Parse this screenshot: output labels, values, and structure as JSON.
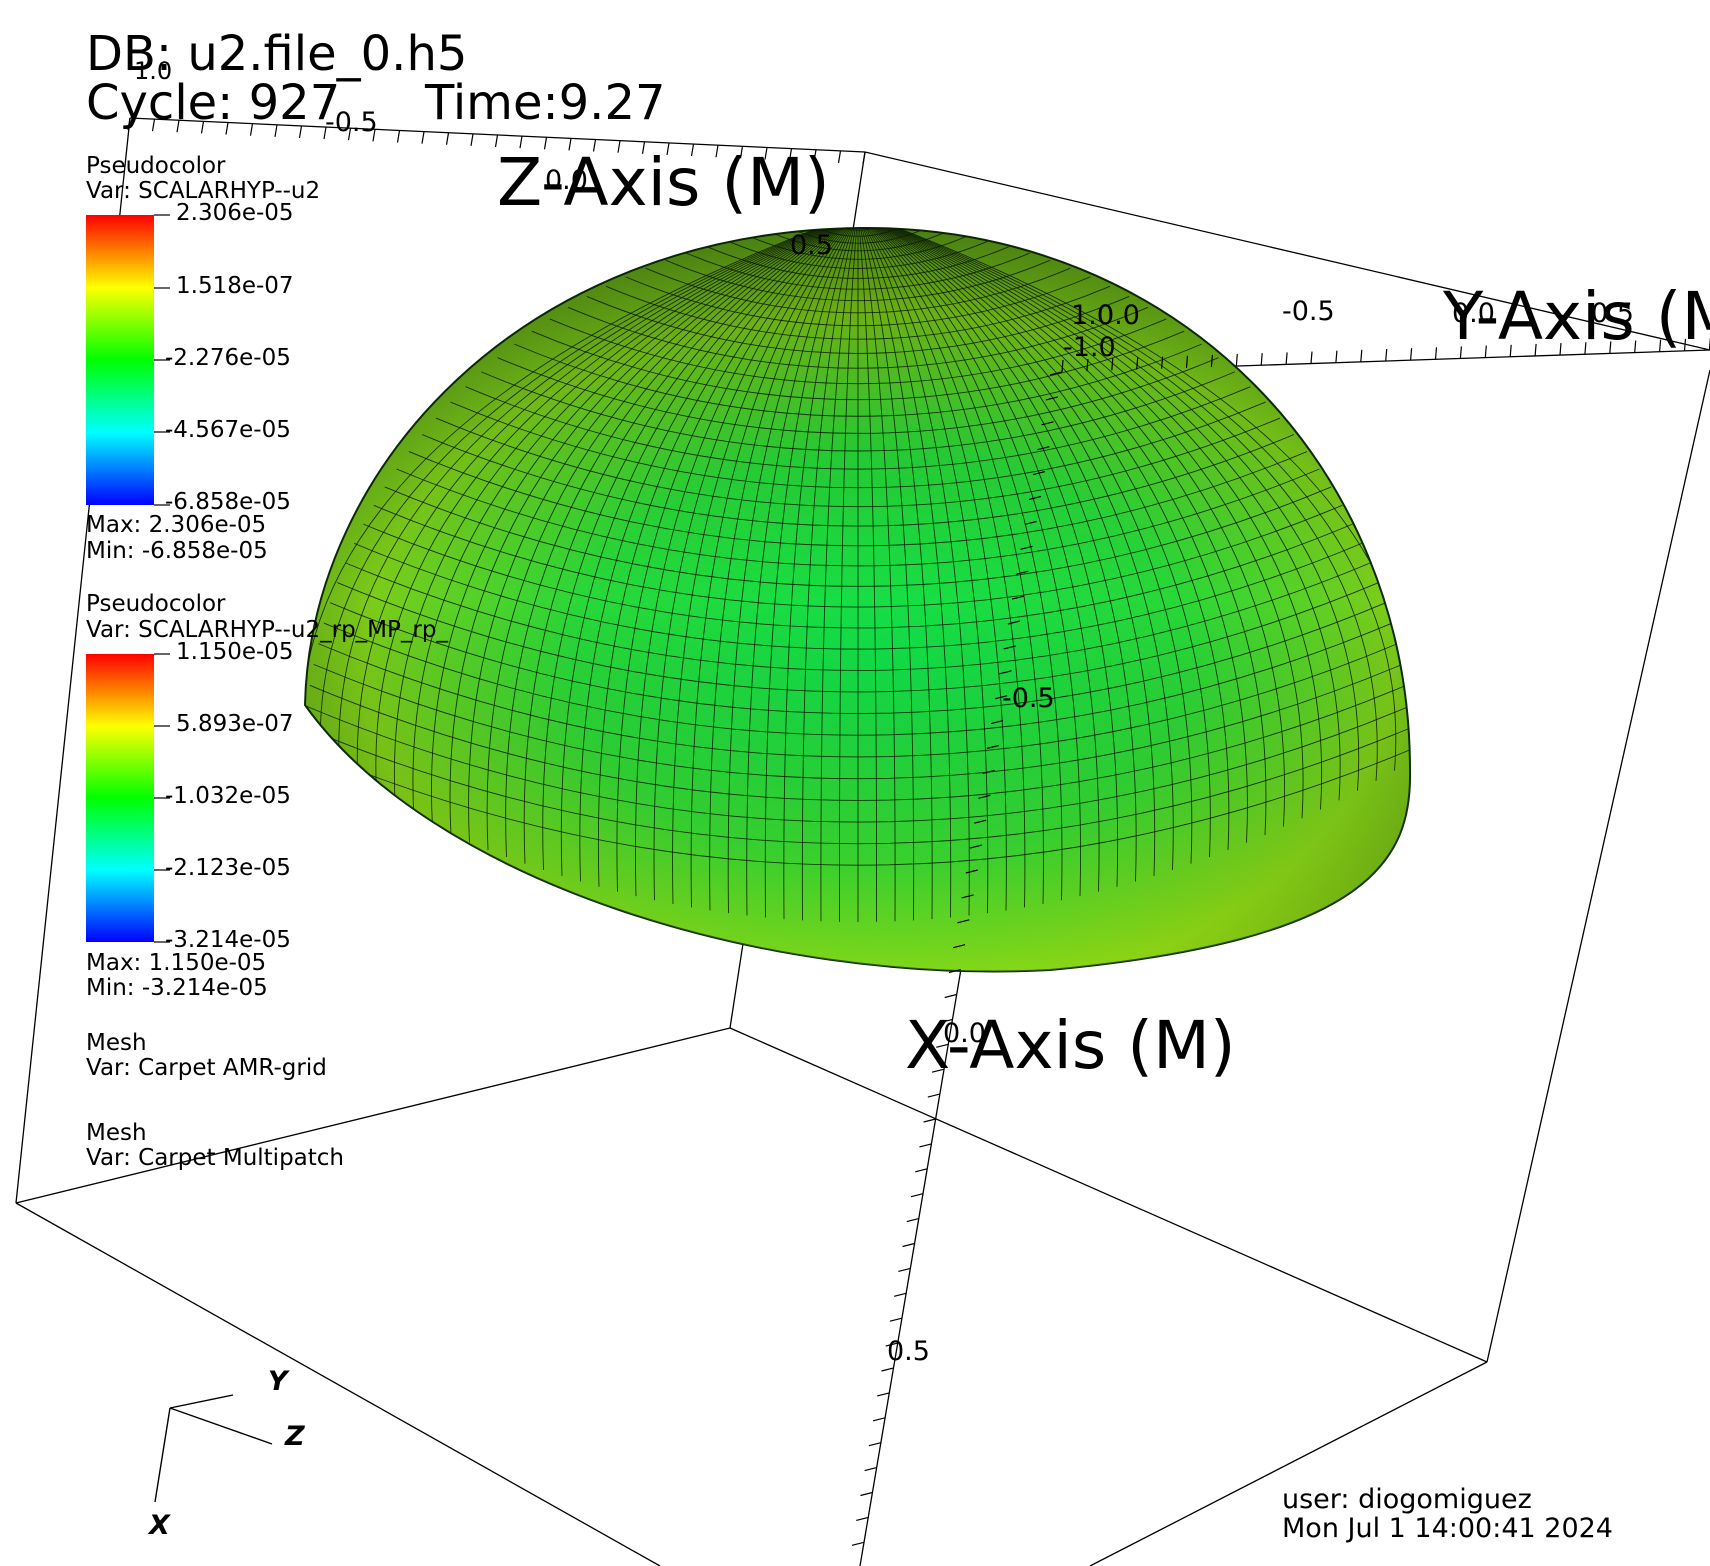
{
  "header": {
    "db": "DB: u2.file_0.h5",
    "cycle": "Cycle: 927",
    "time": "Time:9.27"
  },
  "legends": [
    {
      "title": "Pseudocolor",
      "var": "Var: SCALARHYP--u2",
      "ticks": [
        "2.306e-05",
        "1.518e-07",
        "-2.276e-05",
        "-4.567e-05",
        "-6.858e-05"
      ],
      "max": "Max:  2.306e-05",
      "min": "Min: -6.858e-05"
    },
    {
      "title": "Pseudocolor",
      "var": "Var: SCALARHYP--u2_rp_MP_rp_",
      "ticks": [
        "1.150e-05",
        "5.893e-07",
        "-1.032e-05",
        "-2.123e-05",
        "-3.214e-05"
      ],
      "max": "Max:  1.150e-05",
      "min": "Min: -3.214e-05"
    }
  ],
  "mesh_legends": [
    {
      "title": "Mesh",
      "var": "Var: Carpet AMR-grid"
    },
    {
      "title": "Mesh",
      "var": "Var: Carpet Multipatch"
    }
  ],
  "axes": {
    "z_title": "Z-Axis (M)",
    "y_title": "Y-Axis (M",
    "x_title": "X-Axis (M)"
  },
  "tick_labels": {
    "z_top_a": "1.0",
    "z_top_b": "-0.5",
    "z_mid": "0.0",
    "z_dome": "0.5",
    "y_a": "1.0",
    "y_b": "0.0",
    "y_c": "-0.5",
    "y_d": "0.0",
    "y_e": "0.5",
    "x_top": "-1.0",
    "x_mid": "-0.5",
    "x_zero": "0.0",
    "x_low": "0.5"
  },
  "triad": {
    "x": "X",
    "y": "Y",
    "z": "Z"
  },
  "footer": {
    "user": "user: diogomiguez",
    "date": "Mon Jul  1 14:00:41 2024"
  },
  "colors": {
    "surface_main": "#22d03a",
    "surface_yellow": "#a8d80e",
    "surface_dark": "#3a7a10",
    "mesh_line": "#0a1a05",
    "colorbar": [
      "#ff0000",
      "#ffff00",
      "#00ff00",
      "#00ffff",
      "#0000ff"
    ]
  }
}
